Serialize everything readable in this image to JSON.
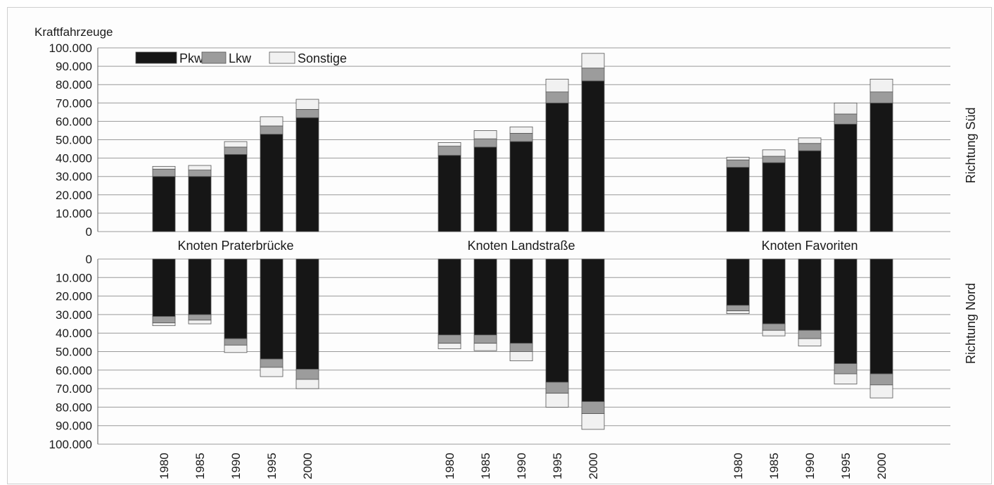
{
  "chart_data": {
    "type": "bar",
    "stacked": true,
    "mirrored": true,
    "ylabel": "Kraftfahrzeuge",
    "ylim": [
      0,
      100000
    ],
    "yticks": [
      0,
      10000,
      20000,
      30000,
      40000,
      50000,
      60000,
      70000,
      80000,
      90000,
      100000
    ],
    "ytick_labels": [
      "0",
      "10.000",
      "20.000",
      "30.000",
      "40.000",
      "50.000",
      "60.000",
      "70.000",
      "80.000",
      "90.000",
      "100.000"
    ],
    "grid": true,
    "legend_position": "top-left",
    "legend": [
      {
        "name": "Pkw",
        "color": "#161616"
      },
      {
        "name": "Lkw",
        "color": "#9c9c9c"
      },
      {
        "name": "Sonstige",
        "color": "#f1f1f1"
      }
    ],
    "panels": [
      {
        "name": "Richtung Süd",
        "direction": "up"
      },
      {
        "name": "Richtung Nord",
        "direction": "down"
      }
    ],
    "groups": [
      {
        "name": "Knoten Praterbrücke",
        "years": [
          "1980",
          "1985",
          "1990",
          "1995",
          "2000"
        ],
        "sued": {
          "Pkw": [
            30000,
            30000,
            42000,
            53000,
            62000
          ],
          "Lkw": [
            4000,
            3500,
            4000,
            4500,
            4500
          ],
          "Sonstige": [
            1500,
            2500,
            3000,
            5000,
            5500
          ]
        },
        "nord": {
          "Pkw": [
            31000,
            30000,
            43000,
            54000,
            59500
          ],
          "Lkw": [
            3500,
            3000,
            3500,
            4500,
            5500
          ],
          "Sonstige": [
            1500,
            2000,
            4000,
            5000,
            5000
          ]
        }
      },
      {
        "name": "Knoten Landstraße",
        "years": [
          "1980",
          "1985",
          "1990",
          "1995",
          "2000"
        ],
        "sued": {
          "Pkw": [
            41500,
            46000,
            49000,
            70000,
            82000
          ],
          "Lkw": [
            5000,
            4500,
            4500,
            6000,
            7000
          ],
          "Sonstige": [
            2000,
            4500,
            3500,
            7000,
            8000
          ]
        },
        "nord": {
          "Pkw": [
            41000,
            41000,
            45500,
            66500,
            77000
          ],
          "Lkw": [
            4500,
            4500,
            4500,
            6000,
            6500
          ],
          "Sonstige": [
            3000,
            4000,
            5000,
            7500,
            8500
          ]
        }
      },
      {
        "name": "Knoten Favoriten",
        "years": [
          "1980",
          "1985",
          "1990",
          "1995",
          "2000"
        ],
        "sued": {
          "Pkw": [
            35000,
            37500,
            44000,
            58500,
            70000
          ],
          "Lkw": [
            4000,
            3500,
            4000,
            5500,
            6000
          ],
          "Sonstige": [
            1500,
            3500,
            3000,
            6000,
            7000
          ]
        },
        "nord": {
          "Pkw": [
            25000,
            35000,
            38500,
            56500,
            62000
          ],
          "Lkw": [
            3000,
            3500,
            4500,
            5500,
            6000
          ],
          "Sonstige": [
            1500,
            3000,
            4000,
            5500,
            7000
          ]
        }
      }
    ]
  }
}
